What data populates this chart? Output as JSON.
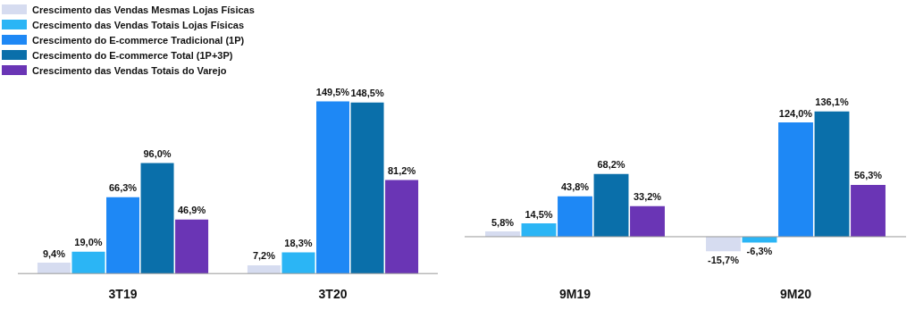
{
  "chart_data": [
    {
      "type": "bar",
      "categories": [
        "3T19",
        "3T20"
      ],
      "legend": "top left",
      "data_labels": true,
      "series": [
        {
          "name": "Crescimento das Vendas Mesmas Lojas Físicas",
          "color": "#d6dcf0",
          "values": [
            9.4,
            7.2
          ],
          "value_labels": [
            "9,4%",
            "7,2%"
          ]
        },
        {
          "name": "Crescimento das Vendas Totais Lojas Físicas",
          "color": "#2bb5f5",
          "values": [
            19.0,
            18.3
          ],
          "value_labels": [
            "19,0%",
            "18,3%"
          ]
        },
        {
          "name": "Crescimento do E-commerce Tradicional (1P)",
          "color": "#1e88f5",
          "values": [
            66.3,
            149.5
          ],
          "value_labels": [
            "66,3%",
            "149,5%"
          ]
        },
        {
          "name": "Crescimento do E-commerce Total (1P+3P)",
          "color": "#0a6faa",
          "values": [
            96.0,
            148.5
          ],
          "value_labels": [
            "96,0%",
            "148,5%"
          ]
        },
        {
          "name": "Crescimento das Vendas Totais do Varejo",
          "color": "#6a35b5",
          "values": [
            46.9,
            81.2
          ],
          "value_labels": [
            "46,9%",
            "81,2%"
          ]
        }
      ]
    },
    {
      "type": "bar",
      "categories": [
        "9M19",
        "9M20"
      ],
      "data_labels": true,
      "series": [
        {
          "color": "#d6dcf0",
          "values": [
            5.8,
            -15.7
          ],
          "value_labels": [
            "5,8%",
            "-15,7%"
          ]
        },
        {
          "color": "#2bb5f5",
          "values": [
            14.5,
            -6.3
          ],
          "value_labels": [
            "14,5%",
            "-6,3%"
          ]
        },
        {
          "color": "#1e88f5",
          "values": [
            43.8,
            124.0
          ],
          "value_labels": [
            "43,8%",
            "124,0%"
          ]
        },
        {
          "color": "#0a6faa",
          "values": [
            68.2,
            136.1
          ],
          "value_labels": [
            "68,2%",
            "136,1%"
          ]
        },
        {
          "color": "#6a35b5",
          "values": [
            33.2,
            56.3
          ],
          "value_labels": [
            "33,2%",
            "56,3%"
          ]
        }
      ]
    }
  ]
}
